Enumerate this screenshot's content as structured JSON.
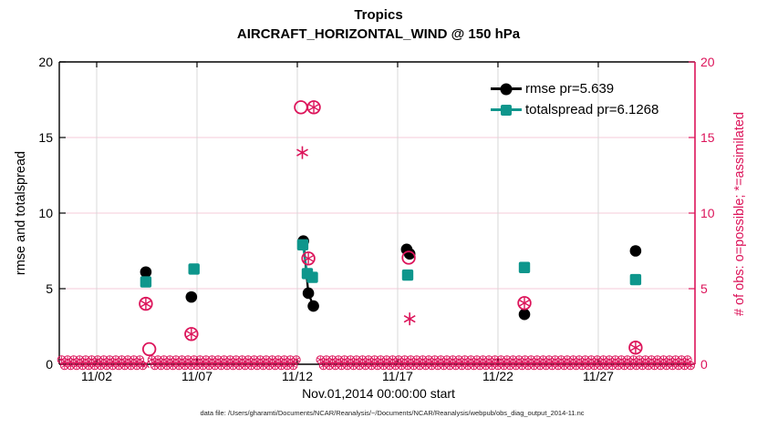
{
  "header": {
    "title": "Tropics",
    "subtitle": "AIRCRAFT_HORIZONTAL_WIND @ 150 hPa"
  },
  "legend": {
    "items": [
      {
        "label": "rmse pr=5.639",
        "color": "#000000",
        "marker": "circle"
      },
      {
        "label": "totalspread pr=6.1268",
        "color": "#0E968C",
        "marker": "square"
      }
    ]
  },
  "axes": {
    "ylabel_left": "rmse and totalspread",
    "ylabel_right": "# of obs: o=possible; *=assimilated",
    "xlabel": "Nov.01,2014 00:00:00 start"
  },
  "caption": "data file: /Users/gharamti/Documents/NCAR/Reanalysis/~/Documents/NCAR/Reanalysis/webpub/obs_diag_output_2014-11.nc",
  "colors": {
    "obs_pink": "#DC145A",
    "teal": "#0E968C",
    "black": "#000000",
    "vgrid": "#d8d8d8",
    "hgrid": "#f6cbd9"
  },
  "chart_data": {
    "type": "line",
    "title": "Tropics",
    "subtitle": "AIRCRAFT_HORIZONTAL_WIND @ 150 hPa",
    "xlabel": "Nov.01,2014 00:00:00 start",
    "ylabel_left": "rmse and totalspread",
    "ylabel_right": "# of obs: o=possible; *=assimilated",
    "x_unit": "days since Nov 01, 2014 00:00",
    "xlim_days": [
      -0.864,
      30.82
    ],
    "ylim": [
      0,
      20
    ],
    "grid": true,
    "x_ticks": [
      {
        "day": 1,
        "label": "11/02"
      },
      {
        "day": 6,
        "label": "11/07"
      },
      {
        "day": 11,
        "label": "11/12"
      },
      {
        "day": 16,
        "label": "11/17"
      },
      {
        "day": 21,
        "label": "11/22"
      },
      {
        "day": 26,
        "label": "11/27"
      }
    ],
    "y_ticks": [
      0,
      5,
      10,
      15,
      20
    ],
    "series": [
      {
        "name": "rmse pr=5.639",
        "color": "#000000",
        "marker": "circle-filled",
        "segments": [
          [
            [
              3.45,
              6.1
            ]
          ],
          [
            [
              5.72,
              4.45
            ]
          ],
          [
            [
              11.3,
              8.15
            ],
            [
              11.55,
              4.7
            ],
            [
              11.8,
              3.85
            ]
          ],
          [
            [
              16.45,
              7.6
            ],
            [
              16.6,
              7.3
            ]
          ],
          [
            [
              22.32,
              3.3
            ]
          ],
          [
            [
              27.86,
              7.5
            ]
          ]
        ]
      },
      {
        "name": "totalspread pr=6.1268",
        "color": "#0E968C",
        "marker": "square-filled",
        "segments": [
          [
            [
              3.45,
              5.45
            ]
          ],
          [
            [
              5.85,
              6.3
            ]
          ],
          [
            [
              11.27,
              7.9
            ],
            [
              11.5,
              6.0
            ],
            [
              11.75,
              5.75
            ]
          ],
          [
            [
              16.5,
              5.9
            ]
          ],
          [
            [
              22.32,
              6.4
            ]
          ],
          [
            [
              27.86,
              5.6
            ]
          ]
        ]
      }
    ],
    "obs": {
      "axis": "right",
      "color": "#DC145A",
      "possible_marker": "open-circle",
      "assimilated_marker": "asterisk",
      "points_both": [
        [
          3.45,
          4.0
        ],
        [
          5.72,
          2.0
        ],
        [
          11.55,
          7.0
        ],
        [
          11.82,
          17.0
        ],
        [
          22.32,
          4.05
        ],
        [
          27.86,
          1.1
        ]
      ],
      "points_possible_only": [
        [
          3.62,
          1.0
        ],
        [
          11.18,
          17.0
        ],
        [
          16.55,
          7.05
        ]
      ],
      "points_assimilated_only": [
        [
          11.25,
          14.0
        ],
        [
          16.6,
          3.0
        ]
      ],
      "x_cross_points": [
        [
          3.45,
          0.0
        ]
      ],
      "zero_row": {
        "start": -0.75,
        "end": 30.72,
        "step": 0.15,
        "value": 0,
        "gaps": [
          [
            3.3,
            3.62
          ],
          [
            11.02,
            12.02
          ]
        ]
      }
    }
  }
}
